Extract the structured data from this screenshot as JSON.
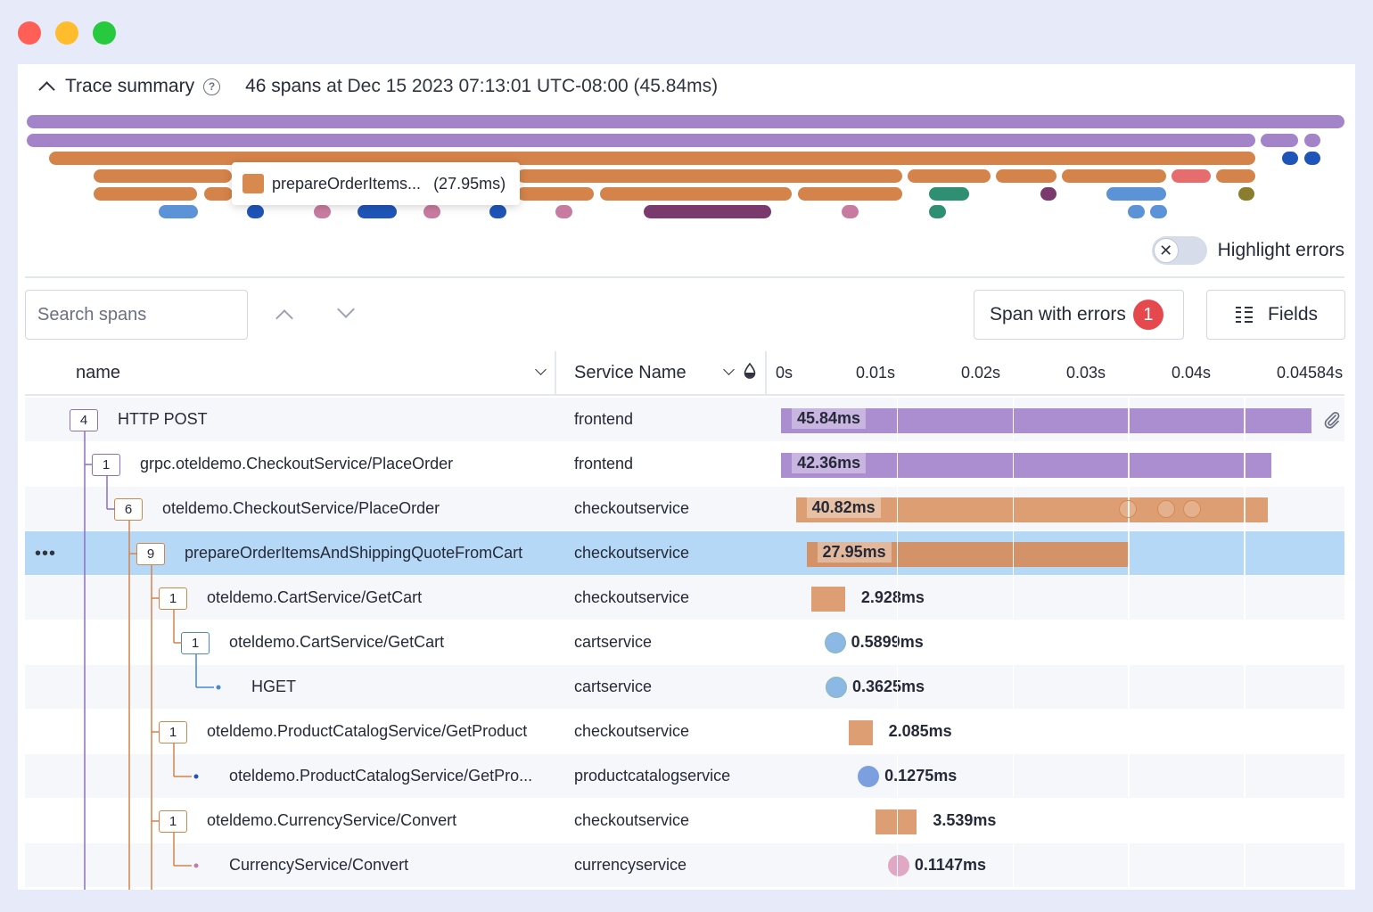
{
  "window": {
    "controls": [
      "close",
      "minimize",
      "zoom"
    ],
    "colors": {
      "close": "#ff5f56",
      "minimize": "#ffbd2e",
      "zoom": "#27c93f"
    }
  },
  "summary": {
    "title": "Trace summary",
    "span_count": "46 spans",
    "at": "at",
    "datetime": "Dec 15 2023 07:13:01 UTC-08:00 (45.84ms)"
  },
  "tooltip": {
    "name": "prepareOrderItems...",
    "duration": "(27.95ms)"
  },
  "highlight_errors": {
    "label": "Highlight errors",
    "enabled": false
  },
  "search": {
    "placeholder": "Search spans",
    "value": ""
  },
  "toolbar": {
    "errors_label": "Span with errors",
    "errors_count": "1",
    "fields_label": "Fields"
  },
  "table": {
    "col_name": "name",
    "col_service": "Service Name",
    "ticks": [
      "0s",
      "0.01s",
      "0.02s",
      "0.03s",
      "0.04s",
      "0.04584s"
    ],
    "total_ms": 45.84,
    "rows": [
      {
        "name": "HTTP POST",
        "count": "4",
        "service": "frontend",
        "duration": "45.84ms",
        "duration_ms": 45.84,
        "start_ms": 0,
        "color": "#ab8ecf",
        "kind": "bar"
      },
      {
        "name": "grpc.oteldemo.CheckoutService/PlaceOrder",
        "count": "1",
        "service": "frontend",
        "duration": "42.36ms",
        "duration_ms": 42.36,
        "start_ms": 0.01,
        "color": "#ab8ecf",
        "kind": "bar"
      },
      {
        "name": "oteldemo.CheckoutService/PlaceOrder",
        "count": "6",
        "service": "checkoutservice",
        "duration": "40.82ms",
        "duration_ms": 40.82,
        "start_ms": 1.28,
        "color": "#dc9e72",
        "kind": "bar"
      },
      {
        "name": "prepareOrderItemsAndShippingQuoteFromCart",
        "count": "9",
        "service": "checkoutservice",
        "duration": "27.95ms",
        "duration_ms": 27.95,
        "start_ms": 2.2,
        "color": "#d39268",
        "kind": "bar",
        "selected": true
      },
      {
        "name": "oteldemo.CartService/GetCart",
        "count": "1",
        "service": "checkoutservice",
        "duration": "2.928ms",
        "duration_ms": 2.928,
        "start_ms": 2.61,
        "color": "#dc9e72",
        "kind": "bar"
      },
      {
        "name": "oteldemo.CartService/GetCart",
        "count": "1",
        "service": "cartservice",
        "duration": "0.5899ms",
        "duration_ms": 0.5899,
        "start_ms": 4.21,
        "color": "#8cb8e6",
        "kind": "dot"
      },
      {
        "name": "HGET",
        "count": "",
        "service": "cartservice",
        "duration": "0.3625ms",
        "duration_ms": 0.3625,
        "start_ms": 4.31,
        "color": "#8cb8e6",
        "kind": "dot"
      },
      {
        "name": "oteldemo.ProductCatalogService/GetProduct",
        "count": "1",
        "service": "checkoutservice",
        "duration": "2.085ms",
        "duration_ms": 2.085,
        "start_ms": 5.82,
        "color": "#dc9e72",
        "kind": "bar"
      },
      {
        "name": "oteldemo.ProductCatalogService/GetPro...",
        "count": "",
        "service": "productcatalogservice",
        "duration": "0.1275ms",
        "duration_ms": 0.1275,
        "start_ms": 7.1,
        "color": "#7c9fe0",
        "kind": "dot"
      },
      {
        "name": "oteldemo.CurrencyService/Convert",
        "count": "1",
        "service": "checkoutservice",
        "duration": "3.539ms",
        "duration_ms": 3.539,
        "start_ms": 8.2,
        "color": "#dc9e72",
        "kind": "bar"
      },
      {
        "name": "CurrencyService/Convert",
        "count": "",
        "service": "currencyservice",
        "duration": "0.1147ms",
        "duration_ms": 0.1147,
        "start_ms": 9.7,
        "color": "#e0a8c4",
        "kind": "dot"
      }
    ]
  },
  "minimap_colors": {
    "purple": "#a384c9",
    "orange": "#d4834a",
    "blue": "#5b93d6",
    "navy": "#1f55b8",
    "pink": "#c87ba0",
    "plum": "#7a3a6e",
    "teal": "#2f8f73",
    "red": "#e56d6d",
    "olive": "#8a7e2e"
  }
}
